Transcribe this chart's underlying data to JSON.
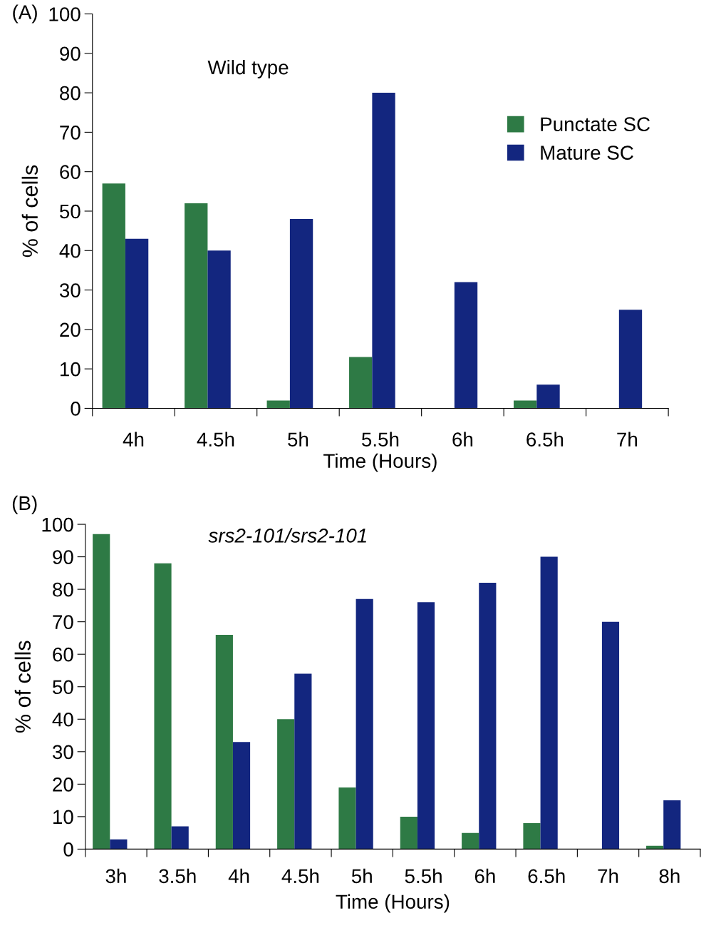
{
  "chart_data": [
    {
      "type": "bar",
      "title": "(A)",
      "subtitle": "Wild type",
      "xlabel": "Time (Hours)",
      "ylabel": "% of cells",
      "categories": [
        "4h",
        "4.5h",
        "5h",
        "5.5h",
        "6h",
        "6.5h",
        "7h"
      ],
      "series": [
        {
          "name": "Punctate SC",
          "color": "#2e7a45",
          "values": [
            57,
            52,
            2,
            13,
            0,
            2,
            0
          ]
        },
        {
          "name": "Mature SC",
          "color": "#13267f",
          "values": [
            43,
            40,
            48,
            80,
            32,
            6,
            25
          ]
        }
      ],
      "ylim": [
        0,
        100
      ],
      "yticks": [
        0,
        10,
        20,
        30,
        40,
        50,
        60,
        70,
        80,
        90,
        100
      ],
      "grid": false,
      "legend": "right"
    },
    {
      "type": "bar",
      "title": "(B)",
      "subtitle": "srs2-101/srs2-101",
      "xlabel": "Time (Hours)",
      "ylabel": "% of cells",
      "categories": [
        "3h",
        "3.5h",
        "4h",
        "4.5h",
        "5h",
        "5.5h",
        "6h",
        "6.5h",
        "7h",
        "8h"
      ],
      "series": [
        {
          "color": "#2e7a45",
          "values": [
            97,
            88,
            66,
            40,
            19,
            10,
            5,
            8,
            0,
            1
          ]
        },
        {
          "color": "#13267f",
          "values": [
            3,
            7,
            33,
            54,
            77,
            76,
            82,
            90,
            70,
            15
          ]
        }
      ],
      "ylim": [
        0,
        100
      ],
      "yticks": [
        0,
        10,
        20,
        30,
        40,
        50,
        60,
        70,
        80,
        90,
        100
      ],
      "grid": false,
      "legend": false
    }
  ]
}
